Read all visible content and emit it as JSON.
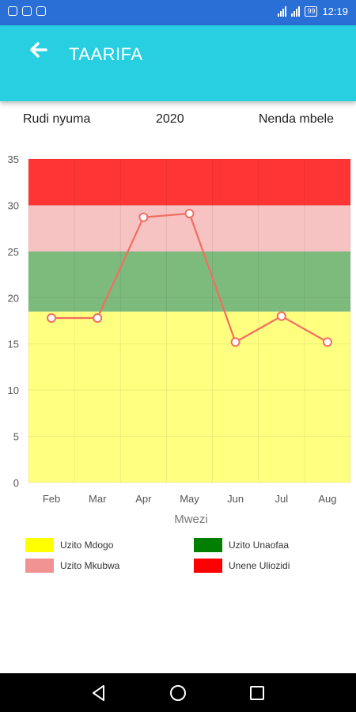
{
  "status": {
    "time": "12:19",
    "battery": "99"
  },
  "header": {
    "title": "TAARIFA"
  },
  "nav": {
    "prev": "Rudi nyuma",
    "year": "2020",
    "next": "Nenda mbele"
  },
  "chart_data": {
    "type": "line",
    "categories": [
      "Feb",
      "Mar",
      "Apr",
      "May",
      "Jun",
      "Jul",
      "Aug"
    ],
    "values": [
      17.8,
      17.8,
      28.7,
      29.1,
      15.2,
      18.0,
      15.2
    ],
    "xlabel": "Mwezi",
    "ylabel": "",
    "ylim": [
      0,
      35
    ],
    "yticks": [
      0,
      5,
      10,
      15,
      20,
      25,
      30,
      35
    ],
    "line_color": "#f26d62",
    "grid": true,
    "bands": [
      {
        "from": 0,
        "to": 18.5,
        "color": "#ffff80"
      },
      {
        "from": 18.5,
        "to": 25,
        "color": "#7dbb7d"
      },
      {
        "from": 25,
        "to": 30,
        "color": "#f7c2c2"
      },
      {
        "from": 30,
        "to": 35,
        "color": "#ff3535"
      }
    ]
  },
  "legend": [
    {
      "label": "Uzito Mdogo",
      "color": "#ffff00"
    },
    {
      "label": "Uzito Unaofaa",
      "color": "#007f00"
    },
    {
      "label": "Uzito Mkubwa",
      "color": "#f29393"
    },
    {
      "label": "Unene Uliozidi",
      "color": "#ff0000"
    }
  ]
}
